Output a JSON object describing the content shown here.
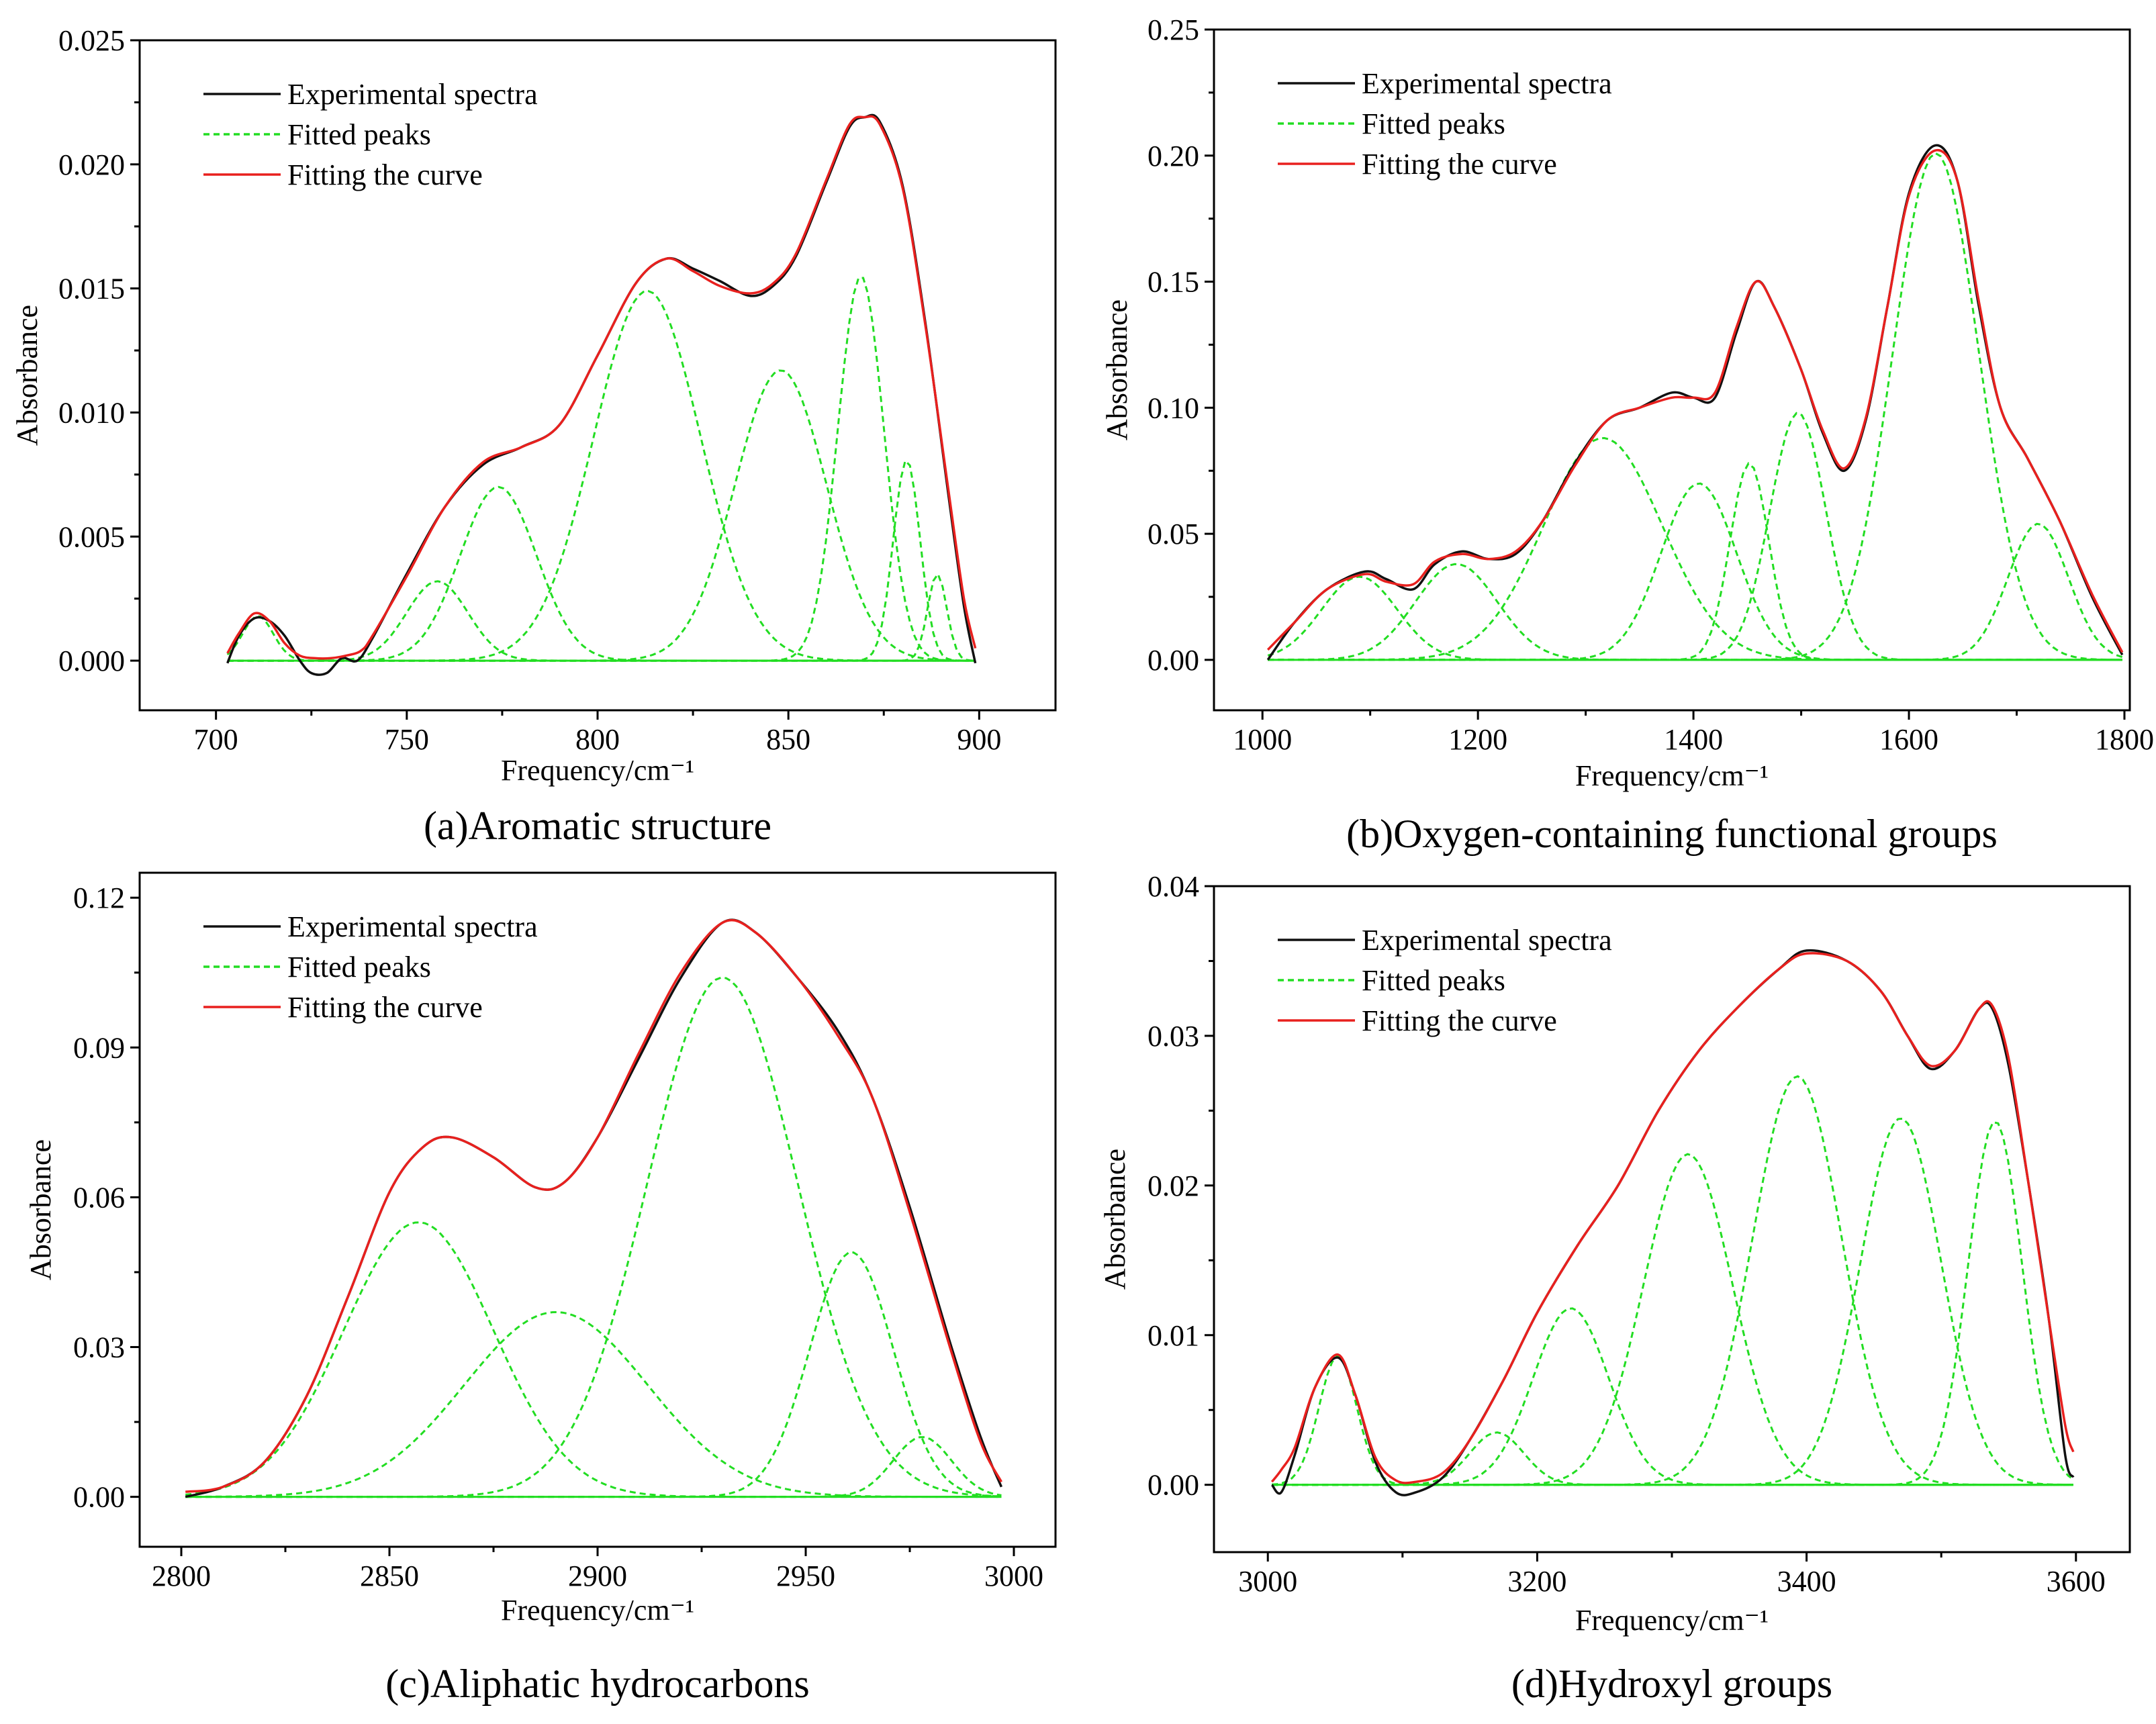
{
  "chart_data": [
    {
      "type": "line",
      "caption": "(a)Aromatic structure",
      "xlabel": "Frequency/cm⁻¹",
      "ylabel": "Absorbance",
      "xlim": [
        680,
        920
      ],
      "ylim": [
        -0.002,
        0.025
      ],
      "xticks": [
        700,
        750,
        800,
        850,
        900
      ],
      "yticks": [
        0.0,
        0.005,
        0.01,
        0.015,
        0.02,
        0.025
      ],
      "xtick_labels": [
        "700",
        "750",
        "800",
        "850",
        "900"
      ],
      "ytick_labels": [
        "0.000",
        "0.005",
        "0.010",
        "0.015",
        "0.020",
        "0.025"
      ],
      "xrange": [
        703,
        899
      ],
      "legend": [
        "Experimental spectra",
        "Fitted peaks",
        "Fitting the curve"
      ],
      "peaks": [
        [
          711,
          0.0018,
          4
        ],
        [
          758,
          0.0032,
          8
        ],
        [
          774,
          0.007,
          10
        ],
        [
          813,
          0.0149,
          14
        ],
        [
          848,
          0.0117,
          12
        ],
        [
          869,
          0.0155,
          6
        ],
        [
          881,
          0.0081,
          3.5
        ],
        [
          889,
          0.0035,
          2.5
        ]
      ],
      "experimental": [
        [
          703,
          -0.0001
        ],
        [
          706,
          0.001
        ],
        [
          710,
          0.0017
        ],
        [
          714,
          0.0016
        ],
        [
          718,
          0.001
        ],
        [
          722,
          0.0
        ],
        [
          725,
          -0.0005
        ],
        [
          729,
          -0.0005
        ],
        [
          733,
          0.0001
        ],
        [
          737,
          0.0
        ],
        [
          741,
          0.0009
        ],
        [
          750,
          0.0035
        ],
        [
          760,
          0.0062
        ],
        [
          770,
          0.0079
        ],
        [
          780,
          0.0086
        ],
        [
          790,
          0.0095
        ],
        [
          800,
          0.0123
        ],
        [
          810,
          0.0152
        ],
        [
          818,
          0.0162
        ],
        [
          825,
          0.0158
        ],
        [
          832,
          0.0153
        ],
        [
          840,
          0.0147
        ],
        [
          846,
          0.0151
        ],
        [
          852,
          0.0163
        ],
        [
          860,
          0.0193
        ],
        [
          866,
          0.0215
        ],
        [
          870,
          0.0219
        ],
        [
          874,
          0.0217
        ],
        [
          880,
          0.0191
        ],
        [
          886,
          0.0135
        ],
        [
          892,
          0.0066
        ],
        [
          896,
          0.0022
        ],
        [
          899,
          -0.0001
        ]
      ],
      "fit": [
        [
          703,
          0.0003
        ],
        [
          706,
          0.0011
        ],
        [
          710,
          0.0019
        ],
        [
          714,
          0.0016
        ],
        [
          718,
          0.0007
        ],
        [
          722,
          0.0002
        ],
        [
          726,
          0.0001
        ],
        [
          730,
          0.0001
        ],
        [
          734,
          0.0002
        ],
        [
          738,
          0.0004
        ],
        [
          741,
          0.001
        ],
        [
          750,
          0.0034
        ],
        [
          760,
          0.0062
        ],
        [
          770,
          0.008
        ],
        [
          780,
          0.0086
        ],
        [
          790,
          0.0095
        ],
        [
          800,
          0.0123
        ],
        [
          810,
          0.0152
        ],
        [
          818,
          0.0162
        ],
        [
          825,
          0.0157
        ],
        [
          832,
          0.0151
        ],
        [
          840,
          0.0148
        ],
        [
          846,
          0.0152
        ],
        [
          852,
          0.0164
        ],
        [
          860,
          0.0194
        ],
        [
          866,
          0.0216
        ],
        [
          870,
          0.0219
        ],
        [
          874,
          0.0216
        ],
        [
          880,
          0.019
        ],
        [
          886,
          0.0134
        ],
        [
          892,
          0.0068
        ],
        [
          896,
          0.0025
        ],
        [
          899,
          0.0005
        ]
      ]
    },
    {
      "type": "line",
      "caption": "(b)Oxygen-containing functional groups",
      "xlabel": "Frequency/cm⁻¹",
      "ylabel": "Absorbance",
      "xlim": [
        955,
        1805
      ],
      "ylim": [
        -0.02,
        0.25
      ],
      "xticks": [
        1000,
        1200,
        1400,
        1600,
        1800
      ],
      "yticks": [
        0.0,
        0.05,
        0.1,
        0.15,
        0.2,
        0.25
      ],
      "xtick_labels": [
        "1000",
        "1200",
        "1400",
        "1600",
        "1800"
      ],
      "ytick_labels": [
        "0.00",
        "0.05",
        "0.10",
        "0.15",
        "0.20",
        "0.25"
      ],
      "xrange": [
        1005,
        1798
      ],
      "legend": [
        "Experimental spectra",
        "Fitted peaks",
        "Fitting the curve"
      ],
      "peaks": [
        [
          1090,
          0.033,
          35
        ],
        [
          1180,
          0.038,
          38
        ],
        [
          1316,
          0.088,
          55
        ],
        [
          1405,
          0.07,
          35
        ],
        [
          1452,
          0.078,
          18
        ],
        [
          1497,
          0.098,
          26
        ],
        [
          1625,
          0.201,
          40
        ],
        [
          1720,
          0.054,
          28
        ]
      ],
      "experimental": [
        [
          1005,
          0.0
        ],
        [
          1030,
          0.015
        ],
        [
          1060,
          0.028
        ],
        [
          1095,
          0.035
        ],
        [
          1115,
          0.032
        ],
        [
          1140,
          0.028
        ],
        [
          1160,
          0.038
        ],
        [
          1185,
          0.043
        ],
        [
          1210,
          0.04
        ],
        [
          1235,
          0.042
        ],
        [
          1260,
          0.055
        ],
        [
          1290,
          0.078
        ],
        [
          1320,
          0.095
        ],
        [
          1350,
          0.1
        ],
        [
          1380,
          0.106
        ],
        [
          1400,
          0.104
        ],
        [
          1420,
          0.104
        ],
        [
          1440,
          0.13
        ],
        [
          1458,
          0.15
        ],
        [
          1475,
          0.14
        ],
        [
          1500,
          0.115
        ],
        [
          1520,
          0.09
        ],
        [
          1540,
          0.075
        ],
        [
          1560,
          0.095
        ],
        [
          1580,
          0.14
        ],
        [
          1600,
          0.185
        ],
        [
          1624,
          0.204
        ],
        [
          1645,
          0.19
        ],
        [
          1665,
          0.14
        ],
        [
          1685,
          0.1
        ],
        [
          1710,
          0.08
        ],
        [
          1740,
          0.055
        ],
        [
          1770,
          0.025
        ],
        [
          1798,
          0.002
        ]
      ],
      "fit": [
        [
          1005,
          0.004
        ],
        [
          1030,
          0.015
        ],
        [
          1060,
          0.028
        ],
        [
          1095,
          0.034
        ],
        [
          1115,
          0.031
        ],
        [
          1140,
          0.03
        ],
        [
          1160,
          0.039
        ],
        [
          1185,
          0.042
        ],
        [
          1210,
          0.04
        ],
        [
          1235,
          0.043
        ],
        [
          1260,
          0.055
        ],
        [
          1290,
          0.077
        ],
        [
          1320,
          0.095
        ],
        [
          1350,
          0.1
        ],
        [
          1380,
          0.104
        ],
        [
          1400,
          0.104
        ],
        [
          1420,
          0.106
        ],
        [
          1440,
          0.132
        ],
        [
          1458,
          0.15
        ],
        [
          1475,
          0.14
        ],
        [
          1500,
          0.115
        ],
        [
          1520,
          0.091
        ],
        [
          1540,
          0.076
        ],
        [
          1560,
          0.096
        ],
        [
          1580,
          0.14
        ],
        [
          1600,
          0.184
        ],
        [
          1624,
          0.202
        ],
        [
          1645,
          0.19
        ],
        [
          1665,
          0.142
        ],
        [
          1685,
          0.1
        ],
        [
          1710,
          0.08
        ],
        [
          1740,
          0.055
        ],
        [
          1770,
          0.026
        ],
        [
          1798,
          0.003
        ]
      ]
    },
    {
      "type": "line",
      "caption": "(c)Aliphatic hydrocarbons",
      "xlabel": "Frequency/cm⁻¹",
      "ylabel": "Absorbance",
      "xlim": [
        2790,
        3010
      ],
      "ylim": [
        -0.01,
        0.125
      ],
      "xticks": [
        2800,
        2850,
        2900,
        2950,
        3000
      ],
      "yticks": [
        0.0,
        0.03,
        0.06,
        0.09,
        0.12
      ],
      "xtick_labels": [
        "2800",
        "2850",
        "2900",
        "2950",
        "3000"
      ],
      "ytick_labels": [
        "0.00",
        "0.03",
        "0.06",
        "0.09",
        "0.12"
      ],
      "xrange": [
        2801,
        2997
      ],
      "legend": [
        "Experimental spectra",
        "Fitted peaks",
        "Fitting the curve"
      ],
      "peaks": [
        [
          2857,
          0.055,
          18
        ],
        [
          2890,
          0.037,
          22
        ],
        [
          2930,
          0.104,
          18
        ],
        [
          2961,
          0.049,
          10
        ],
        [
          2978,
          0.012,
          7
        ]
      ],
      "experimental": [
        [
          2801,
          0.0
        ],
        [
          2810,
          0.002
        ],
        [
          2820,
          0.007
        ],
        [
          2830,
          0.02
        ],
        [
          2840,
          0.04
        ],
        [
          2850,
          0.061
        ],
        [
          2858,
          0.07
        ],
        [
          2865,
          0.072
        ],
        [
          2875,
          0.068
        ],
        [
          2885,
          0.062
        ],
        [
          2892,
          0.063
        ],
        [
          2900,
          0.072
        ],
        [
          2910,
          0.088
        ],
        [
          2920,
          0.104
        ],
        [
          2930,
          0.115
        ],
        [
          2938,
          0.113
        ],
        [
          2948,
          0.104
        ],
        [
          2958,
          0.093
        ],
        [
          2966,
          0.08
        ],
        [
          2975,
          0.058
        ],
        [
          2985,
          0.03
        ],
        [
          2992,
          0.012
        ],
        [
          2997,
          0.002
        ]
      ],
      "fit": [
        [
          2801,
          0.001
        ],
        [
          2810,
          0.002
        ],
        [
          2820,
          0.007
        ],
        [
          2830,
          0.02
        ],
        [
          2840,
          0.04
        ],
        [
          2850,
          0.061
        ],
        [
          2858,
          0.07
        ],
        [
          2865,
          0.072
        ],
        [
          2875,
          0.068
        ],
        [
          2885,
          0.062
        ],
        [
          2892,
          0.063
        ],
        [
          2900,
          0.072
        ],
        [
          2910,
          0.089
        ],
        [
          2920,
          0.105
        ],
        [
          2930,
          0.115
        ],
        [
          2938,
          0.113
        ],
        [
          2948,
          0.104
        ],
        [
          2958,
          0.092
        ],
        [
          2966,
          0.08
        ],
        [
          2975,
          0.057
        ],
        [
          2985,
          0.029
        ],
        [
          2992,
          0.011
        ],
        [
          2997,
          0.003
        ]
      ]
    },
    {
      "type": "line",
      "caption": "(d)Hydroxyl groups",
      "xlabel": "Frequency/cm⁻¹",
      "ylabel": "Absorbance",
      "xlim": [
        2960,
        3640
      ],
      "ylim": [
        -0.0045,
        0.04
      ],
      "xticks": [
        3000,
        3200,
        3400,
        3600
      ],
      "yticks": [
        0.0,
        0.01,
        0.02,
        0.03,
        0.04
      ],
      "xtick_labels": [
        "3000",
        "3200",
        "3400",
        "3600"
      ],
      "ytick_labels": [
        "0.00",
        "0.01",
        "0.02",
        "0.03",
        "0.04"
      ],
      "xrange": [
        3003,
        3598
      ],
      "legend": [
        "Experimental spectra",
        "Fitted peaks",
        "Fitting the curve"
      ],
      "peaks": [
        [
          3052,
          0.0086,
          14
        ],
        [
          3170,
          0.0035,
          20
        ],
        [
          3225,
          0.0118,
          28
        ],
        [
          3312,
          0.0221,
          33
        ],
        [
          3393,
          0.0273,
          33
        ],
        [
          3470,
          0.0245,
          30
        ],
        [
          3540,
          0.0243,
          20
        ]
      ],
      "experimental": [
        [
          3003,
          0.0
        ],
        [
          3010,
          -0.0005
        ],
        [
          3020,
          0.002
        ],
        [
          3035,
          0.0065
        ],
        [
          3052,
          0.0085
        ],
        [
          3065,
          0.006
        ],
        [
          3080,
          0.0015
        ],
        [
          3095,
          -0.0005
        ],
        [
          3110,
          -0.0005
        ],
        [
          3130,
          0.0005
        ],
        [
          3150,
          0.003
        ],
        [
          3175,
          0.007
        ],
        [
          3200,
          0.0115
        ],
        [
          3230,
          0.016
        ],
        [
          3260,
          0.02
        ],
        [
          3290,
          0.025
        ],
        [
          3320,
          0.029
        ],
        [
          3350,
          0.032
        ],
        [
          3380,
          0.0345
        ],
        [
          3400,
          0.0357
        ],
        [
          3430,
          0.035
        ],
        [
          3455,
          0.033
        ],
        [
          3475,
          0.03
        ],
        [
          3492,
          0.0278
        ],
        [
          3510,
          0.029
        ],
        [
          3528,
          0.0318
        ],
        [
          3538,
          0.0318
        ],
        [
          3550,
          0.028
        ],
        [
          3565,
          0.02
        ],
        [
          3580,
          0.011
        ],
        [
          3592,
          0.002
        ],
        [
          3598,
          0.0005
        ]
      ],
      "fit": [
        [
          3003,
          0.0002
        ],
        [
          3010,
          0.001
        ],
        [
          3020,
          0.0025
        ],
        [
          3035,
          0.0065
        ],
        [
          3052,
          0.0087
        ],
        [
          3065,
          0.006
        ],
        [
          3080,
          0.0018
        ],
        [
          3095,
          0.0003
        ],
        [
          3110,
          0.0002
        ],
        [
          3130,
          0.0008
        ],
        [
          3150,
          0.003
        ],
        [
          3175,
          0.007
        ],
        [
          3200,
          0.0115
        ],
        [
          3230,
          0.016
        ],
        [
          3260,
          0.02
        ],
        [
          3290,
          0.025
        ],
        [
          3320,
          0.029
        ],
        [
          3350,
          0.032
        ],
        [
          3380,
          0.0345
        ],
        [
          3400,
          0.0355
        ],
        [
          3430,
          0.035
        ],
        [
          3455,
          0.033
        ],
        [
          3475,
          0.03
        ],
        [
          3492,
          0.028
        ],
        [
          3510,
          0.029
        ],
        [
          3528,
          0.0318
        ],
        [
          3538,
          0.032
        ],
        [
          3550,
          0.0285
        ],
        [
          3565,
          0.02
        ],
        [
          3580,
          0.011
        ],
        [
          3592,
          0.004
        ],
        [
          3598,
          0.0022
        ]
      ]
    }
  ]
}
